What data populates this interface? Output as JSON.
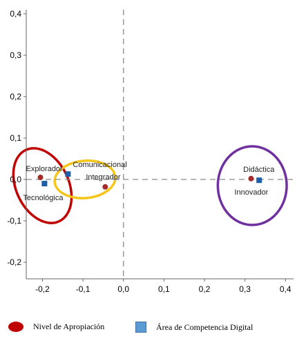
{
  "chart_data": {
    "type": "scatter",
    "xlim": [
      -0.24,
      0.42
    ],
    "ylim": [
      -0.24,
      0.41
    ],
    "x_ticks": [
      "-0,2",
      "-0,1",
      "0,0",
      "0,1",
      "0,2",
      "0,3",
      "0,4"
    ],
    "x_tick_values": [
      -0.2,
      -0.1,
      0.0,
      0.1,
      0.2,
      0.3,
      0.4
    ],
    "y_ticks": [
      "0,4",
      "0,3",
      "0,2",
      "0,1",
      "0,0",
      "-0,1",
      "-0,2"
    ],
    "y_tick_values": [
      0.4,
      0.3,
      0.2,
      0.1,
      0.0,
      -0.1,
      -0.2
    ],
    "reference_lines": {
      "x": 0.0,
      "y": 0.0,
      "style": "dashed"
    },
    "series": [
      {
        "name": "Nivel de Apropiación",
        "color": "#a52a2a",
        "marker": "circle",
        "points": [
          {
            "label": "Explorador",
            "x": -0.205,
            "y": 0.005
          },
          {
            "label": "Integrador",
            "x": -0.045,
            "y": -0.018
          },
          {
            "label": "Innovador",
            "x": 0.315,
            "y": 0.002
          }
        ]
      },
      {
        "name": "Área de Competencia Digital",
        "color": "#1f5fa8",
        "marker": "square",
        "points": [
          {
            "label": "Tecnológica",
            "x": -0.195,
            "y": -0.01
          },
          {
            "label": "Comunicacional",
            "x": -0.137,
            "y": 0.013
          },
          {
            "label": "Didáctica",
            "x": 0.335,
            "y": -0.002
          }
        ]
      }
    ],
    "ellipses": [
      {
        "color": "#c00000",
        "cx": -0.2,
        "cy": -0.015,
        "rx": 0.065,
        "ry": 0.095,
        "rotate": -25
      },
      {
        "color": "#f5c518",
        "cx": -0.095,
        "cy": 0.0,
        "rx": 0.075,
        "ry": 0.045,
        "rotate": -5
      },
      {
        "color": "#7030a0",
        "cx": 0.318,
        "cy": -0.015,
        "rx": 0.085,
        "ry": 0.095,
        "rotate": 0
      }
    ]
  },
  "legend": [
    {
      "label": "Nivel de Apropiación",
      "icon": "red-oval-icon",
      "color": "#c00000"
    },
    {
      "label": "Área de Competencia Digital",
      "icon": "blue-square-icon",
      "color": "#5b9bd5"
    }
  ]
}
